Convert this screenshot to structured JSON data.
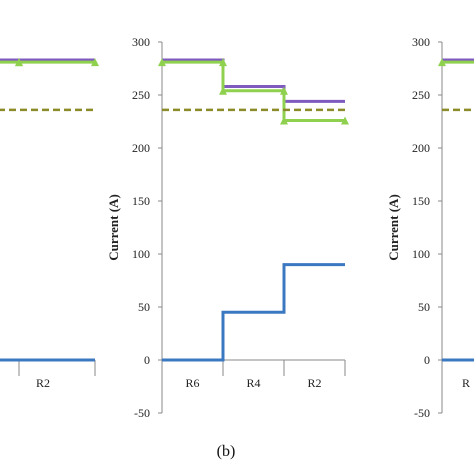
{
  "panel_label": "(b)",
  "chart_data": [
    {
      "panel": "left-partial",
      "type": "line",
      "categories": [
        "R4",
        "R2"
      ],
      "category_labels_visible": [
        "",
        "R2"
      ],
      "ylim": [
        -50,
        300
      ],
      "series": [
        {
          "key": "purple",
          "color": "#7f5bbf",
          "style": "solid",
          "values": [
            283,
            283
          ]
        },
        {
          "key": "green",
          "color": "#8fd14f",
          "style": "solid",
          "marker": "triangle",
          "values": [
            281,
            281
          ]
        },
        {
          "key": "olive",
          "color": "#8b8b2a",
          "style": "dashed",
          "values": [
            236,
            236
          ]
        },
        {
          "key": "blue",
          "color": "#3b78c2",
          "style": "solid",
          "values": [
            0,
            0
          ]
        }
      ]
    },
    {
      "panel": "middle",
      "type": "line",
      "categories": [
        "R6",
        "R4",
        "R2"
      ],
      "category_labels_visible": [
        "R6",
        "R4",
        "R2"
      ],
      "ylabel": "Current (A)",
      "ylim": [
        -50,
        300
      ],
      "yticks": [
        "-50",
        "0",
        "50",
        "100",
        "150",
        "200",
        "250",
        "300"
      ],
      "series": [
        {
          "key": "purple",
          "color": "#7f5bbf",
          "style": "solid",
          "values": [
            283,
            258,
            244
          ]
        },
        {
          "key": "green",
          "color": "#8fd14f",
          "style": "solid",
          "marker": "triangle",
          "values": [
            281,
            254,
            226
          ]
        },
        {
          "key": "olive",
          "color": "#8b8b2a",
          "style": "dashed",
          "values": [
            236,
            236,
            236
          ]
        },
        {
          "key": "blue",
          "color": "#3b78c2",
          "style": "solid",
          "values": [
            0,
            45,
            90
          ]
        }
      ]
    },
    {
      "panel": "right-partial",
      "type": "line",
      "categories": [
        "R6"
      ],
      "category_labels_visible": [
        "R"
      ],
      "ylabel": "Current (A)",
      "ylim": [
        -50,
        300
      ],
      "yticks": [
        "-50",
        "0",
        "50",
        "100",
        "150",
        "200",
        "250",
        "300"
      ],
      "series": [
        {
          "key": "purple",
          "color": "#7f5bbf",
          "style": "solid",
          "values": [
            283
          ]
        },
        {
          "key": "green",
          "color": "#8fd14f",
          "style": "solid",
          "marker": "triangle",
          "values": [
            281
          ]
        },
        {
          "key": "olive",
          "color": "#8b8b2a",
          "style": "dashed",
          "values": [
            236
          ]
        },
        {
          "key": "blue",
          "color": "#3b78c2",
          "style": "solid",
          "values": [
            0
          ]
        }
      ]
    }
  ]
}
